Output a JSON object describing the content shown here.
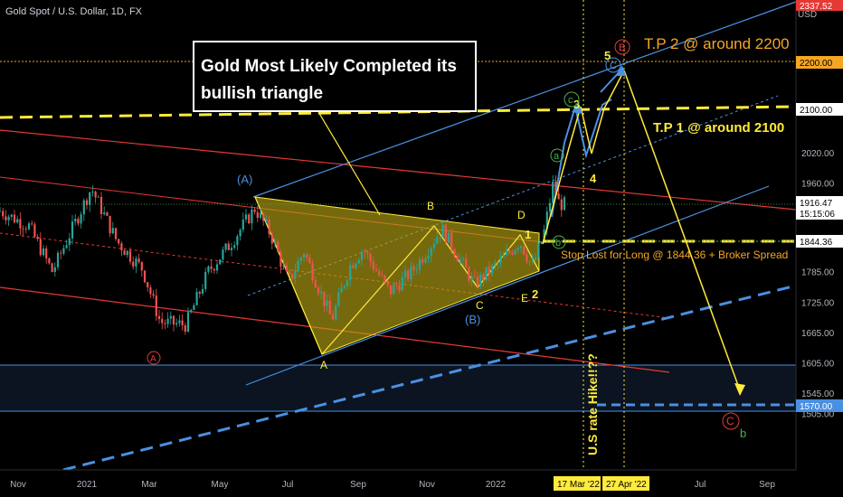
{
  "header": {
    "symbol_title": "Gold Spot / U.S. Dollar, 1D, FX",
    "currency": "USD"
  },
  "colors": {
    "background": "#000000",
    "up_candle": "#26a69a",
    "down_candle": "#ef5350",
    "channel_blue": "#4a90e2",
    "channel_red": "#e53935",
    "triangle_fill": "#b5a114",
    "annotation_yellow": "#ffeb3b",
    "tp2_orange": "#f5a623",
    "green_label": "#4caf50",
    "red_label": "#e53935",
    "blue_label": "#4a90e2"
  },
  "chart_data": {
    "type": "line",
    "title": "",
    "xlabel": "",
    "ylabel": "",
    "x_ticks": [
      "Nov",
      "2021",
      "Mar",
      "May",
      "Jul",
      "Sep",
      "Nov",
      "2022",
      "Mar",
      "May",
      "Jul",
      "Sep"
    ],
    "y_ticks": [
      2200,
      2100,
      2020,
      1960,
      1905,
      1845,
      1785,
      1725,
      1665,
      1605,
      1545,
      1505
    ],
    "y_tick_labels": [
      "2200.00",
      "2100.00",
      "2020.00",
      "1960.00",
      "1905.00",
      "1845.00",
      "1785.00",
      "1725.00",
      "1665.00",
      "1605.00",
      "1545.00",
      "1505.00"
    ],
    "ylim": [
      1480,
      2340
    ],
    "x_range": [
      "2020-10-15",
      "2022-09-30"
    ],
    "grid": false,
    "series": [
      {
        "values": [
          {
            "x": "2020-10-15",
            "y": 1905
          },
          {
            "x": "2020-11-10",
            "y": 1875
          },
          {
            "x": "2020-12-01",
            "y": 1785
          },
          {
            "x": "2021-01-05",
            "y": 1950
          },
          {
            "x": "2021-01-28",
            "y": 1845
          },
          {
            "x": "2021-02-20",
            "y": 1790
          },
          {
            "x": "2021-03-08",
            "y": 1685
          },
          {
            "x": "2021-03-31",
            "y": 1680
          },
          {
            "x": "2021-04-20",
            "y": 1785
          },
          {
            "x": "2021-05-10",
            "y": 1840
          },
          {
            "x": "2021-06-01",
            "y": 1910
          },
          {
            "x": "2021-06-15",
            "y": 1860
          },
          {
            "x": "2021-07-01",
            "y": 1765
          },
          {
            "x": "2021-07-15",
            "y": 1825
          },
          {
            "x": "2021-08-09",
            "y": 1690
          },
          {
            "x": "2021-08-25",
            "y": 1795
          },
          {
            "x": "2021-09-06",
            "y": 1830
          },
          {
            "x": "2021-09-30",
            "y": 1745
          },
          {
            "x": "2021-10-20",
            "y": 1785
          },
          {
            "x": "2021-11-16",
            "y": 1870
          },
          {
            "x": "2021-12-15",
            "y": 1760
          },
          {
            "x": "2022-01-05",
            "y": 1800
          },
          {
            "x": "2022-01-25",
            "y": 1845
          },
          {
            "x": "2022-02-05",
            "y": 1795
          },
          {
            "x": "2022-02-15",
            "y": 1855
          },
          {
            "x": "2022-02-24",
            "y": 1960
          },
          {
            "x": "2022-03-01",
            "y": 1920
          },
          {
            "x": "2022-03-08",
            "y": 1916.47
          }
        ]
      }
    ]
  },
  "price_tags": {
    "top_price": "2337.52",
    "current_price": "1916.47",
    "countdown": "15:15:06",
    "tp2_level": "2200.00",
    "tp1_level": "2100.00",
    "stop_level": "1844.36",
    "target_level": "1570.00"
  },
  "date_tags": {
    "date1": "17 Mar '22",
    "date2": "27 Apr '22"
  },
  "annotations": {
    "headline_line1": "Gold Most Likely Completed its",
    "headline_line2": "bullish triangle",
    "tp2": "T.P 2 @ around 2200",
    "tp1": "T.P 1 @ around 2100",
    "stop_loss": "Stop Lost for Long @ 1844.36 + Broker Spread",
    "rate_hike": "U.S rate Hike!!??"
  },
  "wave_labels": {
    "A_circle": "A",
    "A_paren": "(A)",
    "B_paren": "(B)",
    "C_circle": "C",
    "a_circle": "a",
    "b_circle_green": "b",
    "b_plain": "b",
    "c_circle": "c",
    "tri_A": "A",
    "tri_B": "B",
    "tri_C": "C",
    "tri_D": "D",
    "tri_E": "E",
    "imp_1": "1",
    "imp_2": "2",
    "imp_3": "3",
    "imp_4": "4",
    "imp_5": "5",
    "B_circle_red": "B",
    "c_circle_blue": "C"
  }
}
